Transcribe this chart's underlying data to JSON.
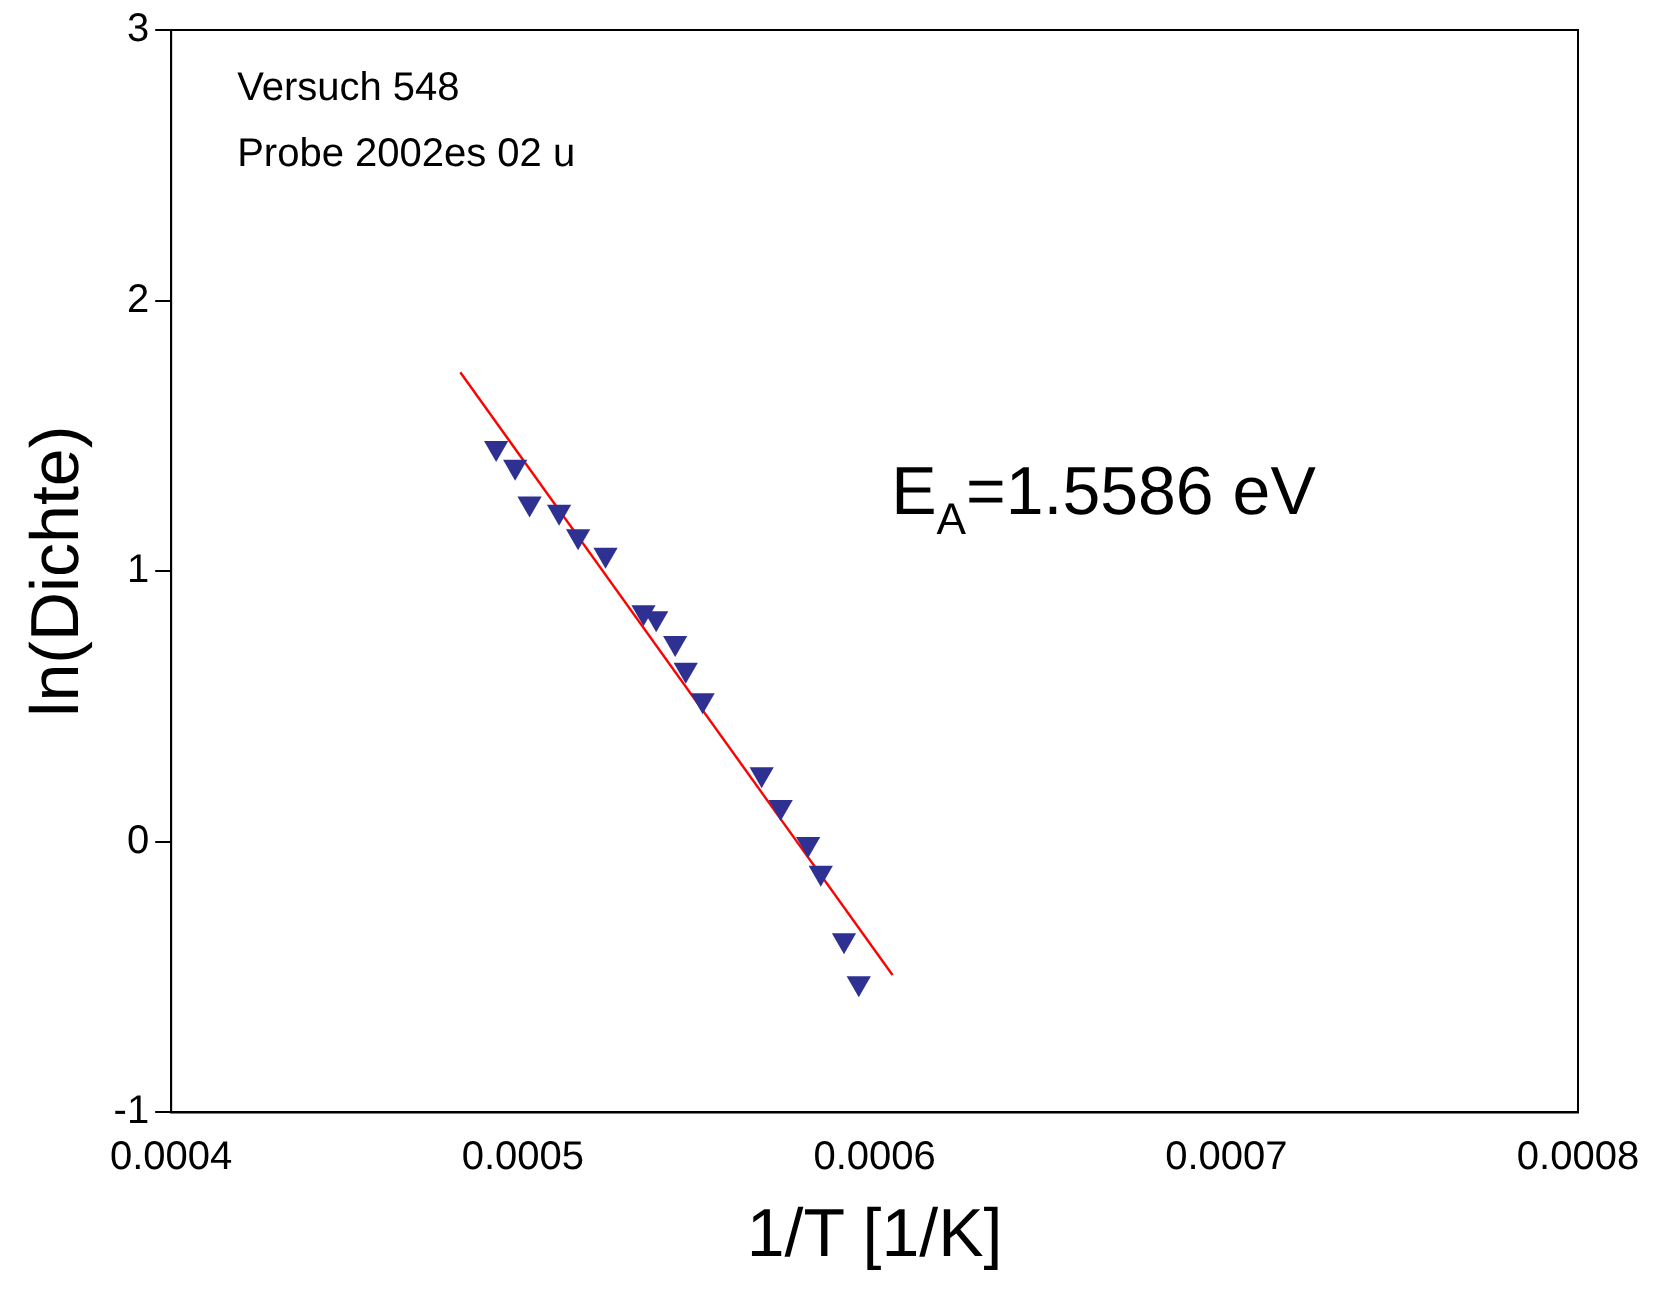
{
  "chart_data": {
    "type": "scatter",
    "xlabel": "1/T [1/K]",
    "ylabel": "ln(Dichte)",
    "xlim": [
      0.0004,
      0.0008
    ],
    "xticks": [
      0.0004,
      0.0005,
      0.0006,
      0.0007,
      0.0008
    ],
    "ylim": [
      -1,
      3
    ],
    "yticks": [
      -1,
      0,
      1,
      2,
      3
    ],
    "grid": false,
    "legend": false,
    "marker": "triangle",
    "series": [
      {
        "type": "scatter",
        "color": "#2e3192",
        "x": [
          0.0004924,
          0.0004978,
          0.0005019,
          0.0005103,
          0.0005157,
          0.0005235,
          0.0005343,
          0.0005379,
          0.0005433,
          0.0005463,
          0.0005511,
          0.0005679,
          0.0005733,
          0.0005811,
          0.0005847,
          0.0005913,
          0.0005955
        ],
        "values": [
          1.455,
          1.386,
          1.25,
          1.22,
          1.129,
          1.061,
          0.848,
          0.826,
          0.735,
          0.636,
          0.523,
          0.25,
          0.129,
          -0.008,
          -0.114,
          -0.364,
          -0.523
        ]
      },
      {
        "type": "line",
        "color": "#ff0000",
        "marker": "none",
        "x": [
          0.0004822,
          0.0006051
        ],
        "values": [
          1.735,
          -0.492
        ]
      }
    ],
    "annotations": [
      "Versuch 548",
      "Probe 2002es 02 u",
      {
        "text": "E$_{A}$=1.5586 eV"
      }
    ]
  }
}
